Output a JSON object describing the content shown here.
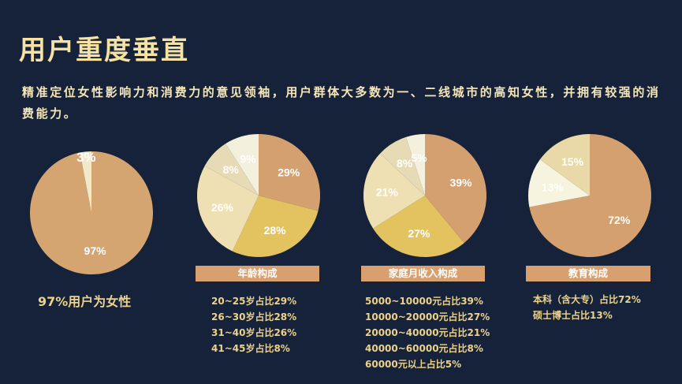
{
  "title": "用户重度垂直",
  "subtitle": "精准定位女性影响力和消费力的意见领袖，用户群体大多数为一、二线城市的高知女性，并拥有较强的消费能力。",
  "female_caption": "97%用户为女性",
  "chart_data": [
    {
      "type": "pie",
      "title": "",
      "labels": [
        "97%",
        "3%"
      ],
      "values": [
        97,
        3
      ],
      "colors": [
        "#d5a571",
        "#f1e9c8"
      ]
    },
    {
      "type": "pie",
      "title": "年龄构成",
      "labels": [
        "29%",
        "28%",
        "26%",
        "8%",
        "9%"
      ],
      "values": [
        29,
        28,
        26,
        8,
        9
      ],
      "colors": [
        "#d4a06f",
        "#e3c35f",
        "#efe0b4",
        "#e7dbb6",
        "#f4f0de"
      ],
      "notes": [
        "20~25岁占比29%",
        "26~30岁占比28%",
        "31~40岁占比26%",
        "41~45岁占比8%"
      ]
    },
    {
      "type": "pie",
      "title": "家庭月收入构成",
      "labels": [
        "39%",
        "27%",
        "21%",
        "8%",
        "5%"
      ],
      "values": [
        39,
        27,
        21,
        8,
        5
      ],
      "colors": [
        "#d5a06f",
        "#e3c35f",
        "#efe0b4",
        "#e7dbb6",
        "#f4f0de"
      ],
      "notes": [
        "5000~10000元占比39%",
        "10000~20000元占比27%",
        "20000~40000元占比21%",
        "40000~60000元占比8%",
        "60000元以上占比5%"
      ]
    },
    {
      "type": "pie",
      "title": "教育构成",
      "labels": [
        "72%",
        "13%",
        "15%"
      ],
      "values": [
        72,
        13,
        15
      ],
      "colors": [
        "#d5a06f",
        "#f6f3de",
        "#e9d9a8"
      ],
      "notes": [
        "本科（含大专）占比72%",
        "硕士博士占比13%"
      ]
    }
  ]
}
